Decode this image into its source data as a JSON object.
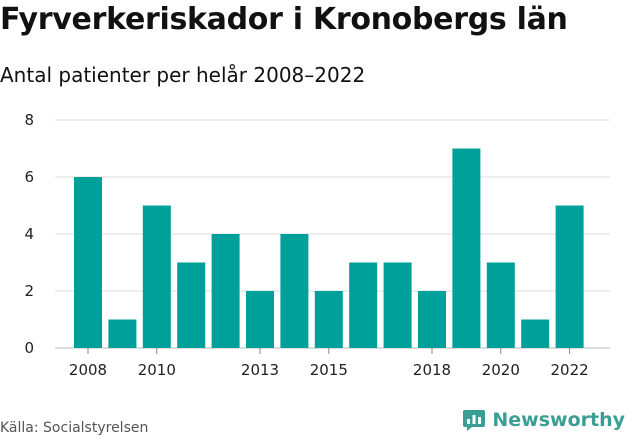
{
  "header": {
    "title": "Fyrverkeriskador i Kronobergs län",
    "subtitle": "Antal patienter per helår 2008–2022"
  },
  "footer": {
    "source": "Källa: Socialstyrelsen",
    "brand": "Newsworthy"
  },
  "colors": {
    "bar": "#00a09a",
    "grid": "#dddddd",
    "brand": "#3a9e95"
  },
  "chart_data": {
    "type": "bar",
    "categories": [
      "2008",
      "2009",
      "2010",
      "2011",
      "2012",
      "2013",
      "2014",
      "2015",
      "2016",
      "2017",
      "2018",
      "2019",
      "2020",
      "2021",
      "2022"
    ],
    "values": [
      6,
      1,
      5,
      3,
      4,
      2,
      4,
      2,
      3,
      3,
      2,
      7,
      3,
      1,
      5
    ],
    "x_tick_labels": [
      "2008",
      "2010",
      "2013",
      "2015",
      "2018",
      "2020",
      "2022"
    ],
    "y_ticks": [
      0,
      2,
      4,
      6,
      8
    ],
    "ylim": [
      0,
      8
    ],
    "grid": true,
    "legend": "none",
    "title": "Fyrverkeriskador i Kronobergs län",
    "subtitle": "Antal patienter per helår 2008–2022",
    "xlabel": "",
    "ylabel": ""
  }
}
